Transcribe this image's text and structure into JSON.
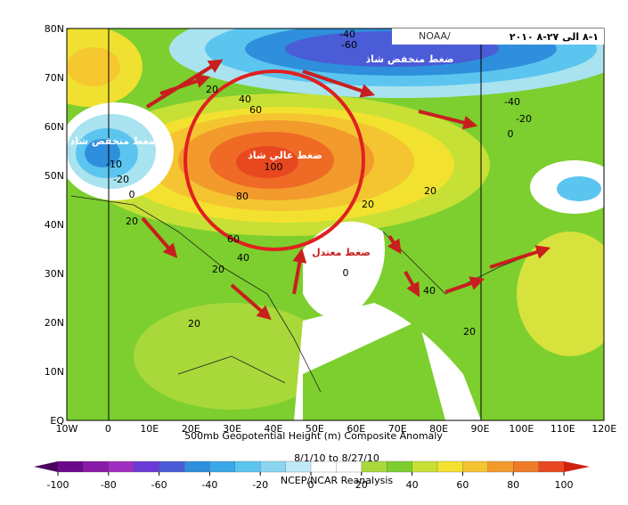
{
  "header": {
    "badge": "NOAA/",
    "date_range_ar": "١-٨ الى ٢٧-٨ ٢٠١٠"
  },
  "map": {
    "lat_labels": [
      "EQ",
      "10N",
      "20N",
      "30N",
      "40N",
      "50N",
      "60N",
      "70N",
      "80N"
    ],
    "lon_labels": [
      "10W",
      "0",
      "10E",
      "20E",
      "30E",
      "40E",
      "50E",
      "60E",
      "70E",
      "80E",
      "90E",
      "100E",
      "110E",
      "120E"
    ],
    "contour_labels": [
      "-40",
      "-60",
      "-40",
      "-20",
      "0",
      "20",
      "40",
      "60",
      "100",
      "80",
      "60",
      "40",
      "20",
      "-10",
      "-20",
      "0",
      "20",
      "20",
      "0",
      "20",
      "40",
      "20",
      "20"
    ],
    "annotations": [
      "ضغط منخفض شاذ",
      "ضغط منخفض شاذ",
      "ضغط عالي شاذ",
      "ضغط معتدل"
    ]
  },
  "footer": {
    "title": "500mb Geopotential Height (m) Composite Anomaly",
    "period": "8/1/10  to 8/27/10",
    "source": "NCEP/NCAR Reanalysis",
    "colorbar_ticks": [
      -100,
      -80,
      -60,
      -40,
      -20,
      0,
      20,
      40,
      60,
      80,
      100
    ]
  }
}
